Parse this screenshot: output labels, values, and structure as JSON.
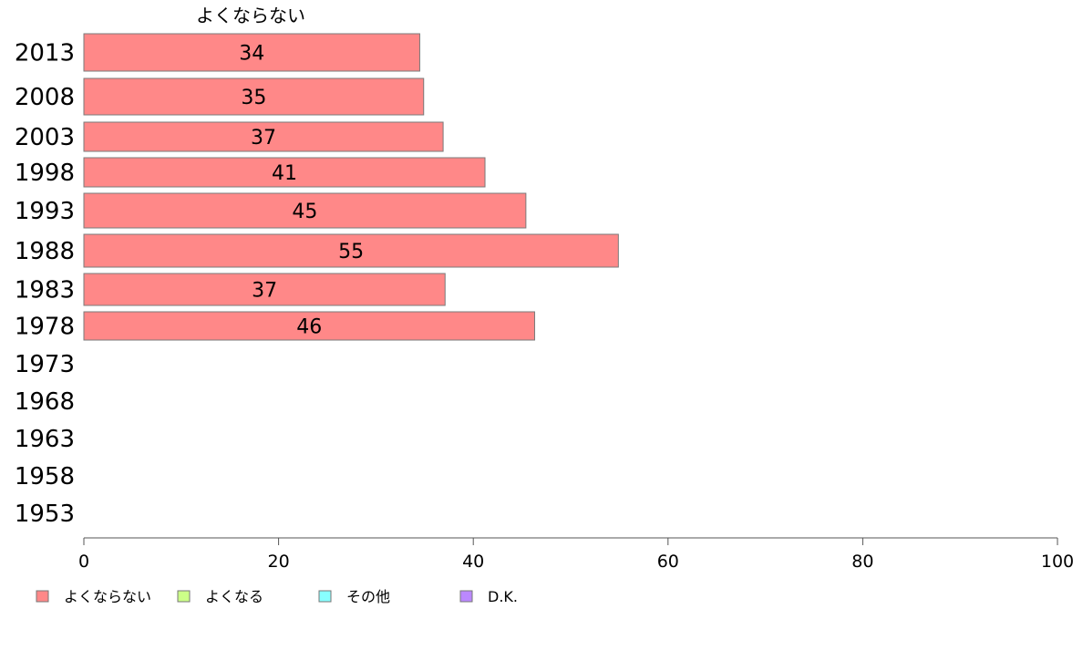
{
  "chart_data": {
    "type": "bar",
    "orientation": "horizontal",
    "series_title": "よくならない",
    "categories": [
      "2013",
      "2008",
      "2003",
      "1998",
      "1993",
      "1988",
      "1983",
      "1978",
      "1973",
      "1968",
      "1963",
      "1958",
      "1953"
    ],
    "series": [
      {
        "name": "よくならない",
        "color": "#ff8888",
        "values": [
          34.5,
          34.9,
          36.9,
          41.2,
          45.4,
          54.9,
          37.1,
          46.3,
          null,
          null,
          null,
          null,
          null
        ],
        "labels": [
          "34",
          "35",
          "37",
          "41",
          "45",
          "55",
          "37",
          "46",
          "",
          "",
          "",
          "",
          ""
        ]
      }
    ],
    "xlim": [
      0,
      100
    ],
    "xticks": [
      "0",
      "20",
      "40",
      "60",
      "80",
      "100"
    ],
    "xlabel": "",
    "ylabel": "",
    "legend": {
      "position": "bottom-left",
      "items": [
        {
          "label": "よくならない",
          "color": "#ff8888"
        },
        {
          "label": "よくなる",
          "color": "#ccff88"
        },
        {
          "label": "その他",
          "color": "#88ffff"
        },
        {
          "label": "D.K.",
          "color": "#bb88ff"
        }
      ]
    },
    "grid": false
  }
}
